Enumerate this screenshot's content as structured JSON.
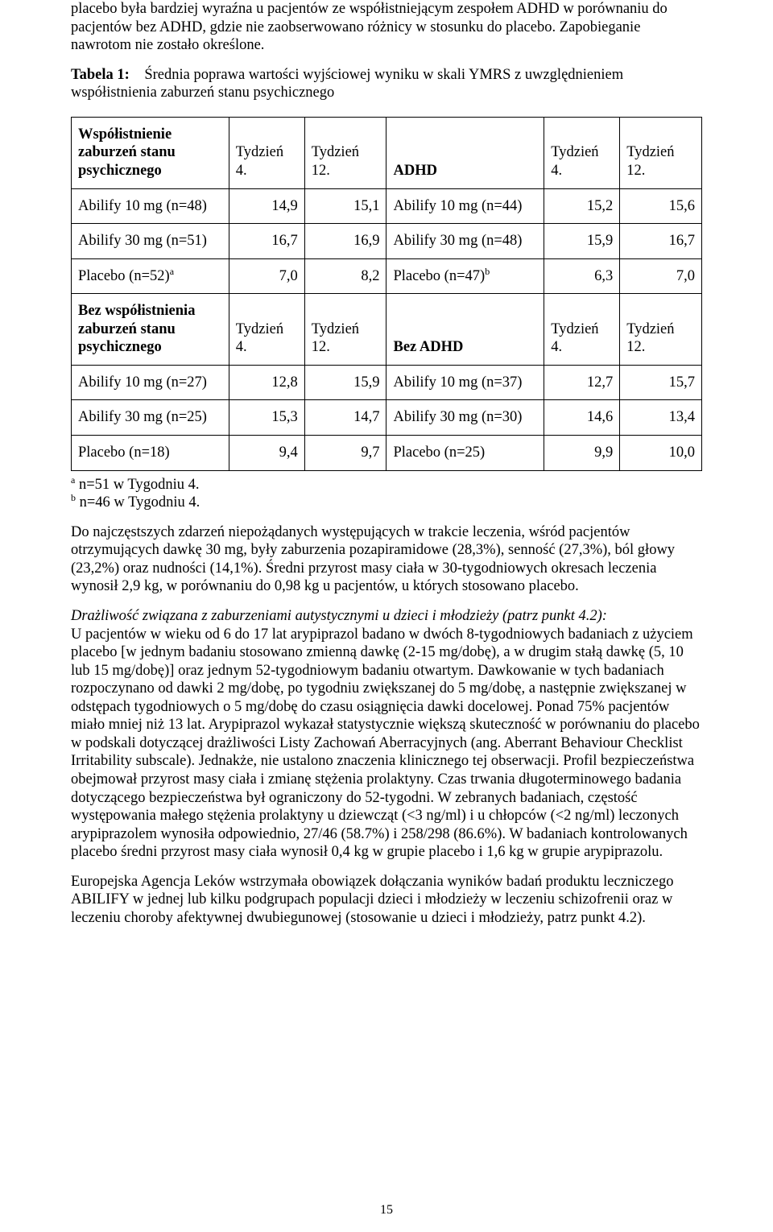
{
  "para_top": "placebo była bardziej wyraźna u pacjentów ze współistniejącym zespołem ADHD w porównaniu do pacjentów bez ADHD, gdzie nie zaobserwowano różnicy w stosunku do placebo. Zapobieganie nawrotom nie zostało określone.",
  "table_caption_lead": "Tabela 1:",
  "table_caption_rest": "Średnia poprawa wartości wyjściowej wyniku w skali YMRS z uwzględnieniem współistnienia zaburzeń stanu psychicznego",
  "headers1": {
    "c1": "Współistnienie zaburzeń stanu psychicznego",
    "c2": "Tydzień 4.",
    "c3": "Tydzień 12.",
    "c4": "ADHD",
    "c5": "Tydzień 4.",
    "c6": "Tydzień 12."
  },
  "rows1": [
    {
      "a": "Abilify 10 mg (n=48)",
      "b": "14,9",
      "c": "15,1",
      "d": "Abilify 10 mg (n=44)",
      "e": "15,2",
      "f": "15,6"
    },
    {
      "a": "Abilify 30 mg (n=51)",
      "b": "16,7",
      "c": "16,9",
      "d": "Abilify 30 mg (n=48)",
      "e": "15,9",
      "f": "16,7"
    }
  ],
  "row_plac1": {
    "a_pre": "Placebo (n=52)",
    "a_sup": "a",
    "b": "7,0",
    "c": "8,2",
    "d_pre": "Placebo (n=47)",
    "d_sup": "b",
    "e": "6,3",
    "f": "7,0"
  },
  "headers2": {
    "c1": "Bez współistnienia zaburzeń stanu psychicznego",
    "c2": "Tydzień 4.",
    "c3": "Tydzień 12.",
    "c4": "Bez ADHD",
    "c5": "Tydzień 4.",
    "c6": "Tydzień 12."
  },
  "rows2": [
    {
      "a": "Abilify 10 mg (n=27)",
      "b": "12,8",
      "c": "15,9",
      "d": "Abilify 10 mg (n=37)",
      "e": "12,7",
      "f": "15,7"
    },
    {
      "a": "Abilify 30 mg (n=25)",
      "b": "15,3",
      "c": "14,7",
      "d": "Abilify 30 mg (n=30)",
      "e": "14,6",
      "f": "13,4"
    },
    {
      "a": "Placebo (n=18)",
      "b": "9,4",
      "c": "9,7",
      "d": "Placebo (n=25)",
      "e": "9,9",
      "f": "10,0"
    }
  ],
  "footnote_a_sup": "a",
  "footnote_a_text": "n=51 w Tygodniu 4.",
  "footnote_b_sup": "b",
  "footnote_b_text": "n=46 w Tygodniu 4.",
  "para_after_table": "Do najczęstszych zdarzeń niepożądanych występujących w trakcie leczenia, wśród pacjentów otrzymujących dawkę 30 mg, były zaburzenia pozapiramidowe (28,3%), senność (27,3%), ból głowy (23,2%) oraz nudności (14,1%). Średni przyrost masy ciała w 30-tygodniowych okresach leczenia wynosił 2,9 kg, w porównaniu do 0,98 kg u pacjentów, u których stosowano placebo.",
  "italic_heading": "Drażliwość związana z zaburzeniami autystycznymi u dzieci i młodzieży (patrz punkt 4.2):",
  "para_long": "U pacjentów w wieku od 6 do 17 lat arypiprazol badano w dwóch 8-tygodniowych badaniach z użyciem placebo [w jednym badaniu stosowano zmienną dawkę (2-15 mg/dobę), a w drugim stałą dawkę (5, 10 lub 15 mg/dobę)] oraz jednym 52-tygodniowym badaniu otwartym. Dawkowanie w tych badaniach rozpoczynano od dawki 2 mg/dobę, po tygodniu zwiększanej do 5 mg/dobę, a następnie zwiększanej w odstępach tygodniowych o 5 mg/dobę do czasu osiągnięcia dawki docelowej. Ponad 75% pacjentów miało mniej niż 13 lat. Arypiprazol wykazał statystycznie większą skuteczność w porównaniu do placebo w podskali dotyczącej drażliwości Listy Zachowań Aberracyjnych (ang. Aberrant Behaviour Checklist Irritability subscale). Jednakże, nie ustalono znaczenia klinicznego tej obserwacji. Profil bezpieczeństwa obejmował przyrost masy ciała i zmianę stężenia prolaktyny. Czas trwania długoterminowego badania dotyczącego bezpieczeństwa był ograniczony do 52-tygodni. W zebranych badaniach, częstość występowania małego stężenia prolaktyny u dziewcząt (<3 ng/ml) i u chłopców (<2 ng/ml) leczonych arypiprazolem wynosiła odpowiednio, 27/46 (58.7%) i 258/298 (86.6%). W badaniach kontrolowanych placebo średni przyrost masy ciała wynosił 0,4 kg w grupie placebo i 1,6 kg w grupie arypiprazolu.",
  "para_last": "Europejska Agencja Leków wstrzymała obowiązek dołączania wyników badań produktu leczniczego ABILIFY w jednej lub kilku podgrupach populacji dzieci i młodzieży w leczeniu schizofrenii oraz w leczeniu choroby afektywnej dwubiegunowej (stosowanie u dzieci i młodzieży, patrz punkt 4.2).",
  "page_number": "15",
  "col_widths": {
    "c1": "25%",
    "c2": "12%",
    "c3": "13%",
    "c4": "25%",
    "c5": "12%",
    "c6": "13%"
  }
}
